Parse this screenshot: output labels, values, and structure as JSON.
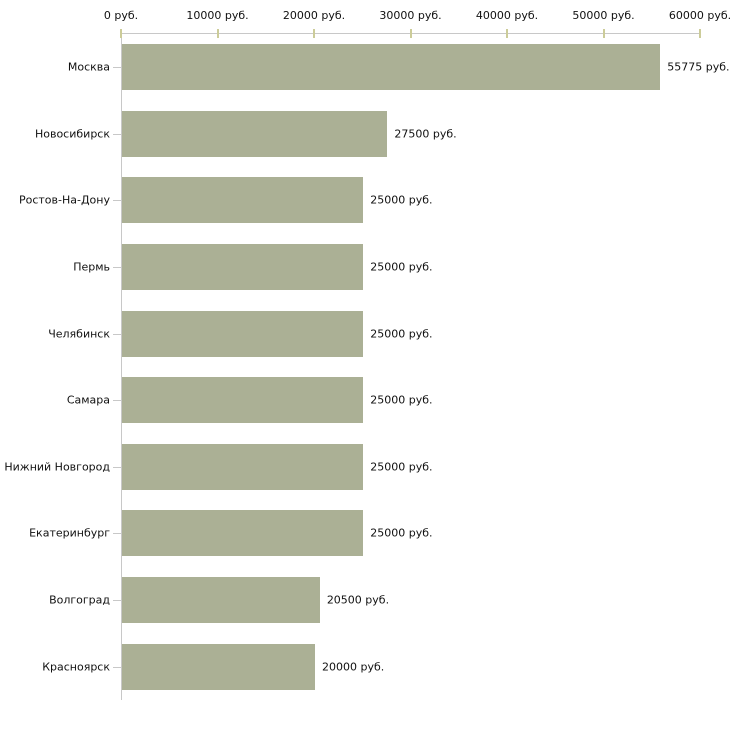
{
  "page": {
    "background": "#ffffff"
  },
  "chart_data": {
    "type": "bar",
    "orientation": "horizontal",
    "title": "",
    "xlabel": "",
    "ylabel": "",
    "xlim": [
      0,
      60000
    ],
    "grid": false,
    "legend": null,
    "x_tick_values": [
      0,
      10000,
      20000,
      30000,
      40000,
      50000,
      60000
    ],
    "x_tick_labels": [
      "0 руб.",
      "10000 руб.",
      "20000 руб.",
      "30000 руб.",
      "40000 руб.",
      "50000 руб.",
      "60000 руб."
    ],
    "categories": [
      "Москва",
      "Новосибирск",
      "Ростов-На-Дону",
      "Пермь",
      "Челябинск",
      "Самара",
      "Нижний Новгород",
      "Екатеринбург",
      "Волгоград",
      "Красноярск"
    ],
    "values": [
      55775,
      27500,
      25000,
      25000,
      25000,
      25000,
      25000,
      25000,
      20500,
      20000
    ],
    "value_labels": [
      "55775 руб.",
      "27500 руб.",
      "25000 руб.",
      "25000 руб.",
      "25000 руб.",
      "25000 руб.",
      "25000 руб.",
      "25000 руб.",
      "20500 руб.",
      "20000 руб."
    ],
    "colors": {
      "bar": "#abb095",
      "axis_line": "#c8c8c8",
      "tick_mark": "#cccc99",
      "text": "#111111"
    }
  }
}
